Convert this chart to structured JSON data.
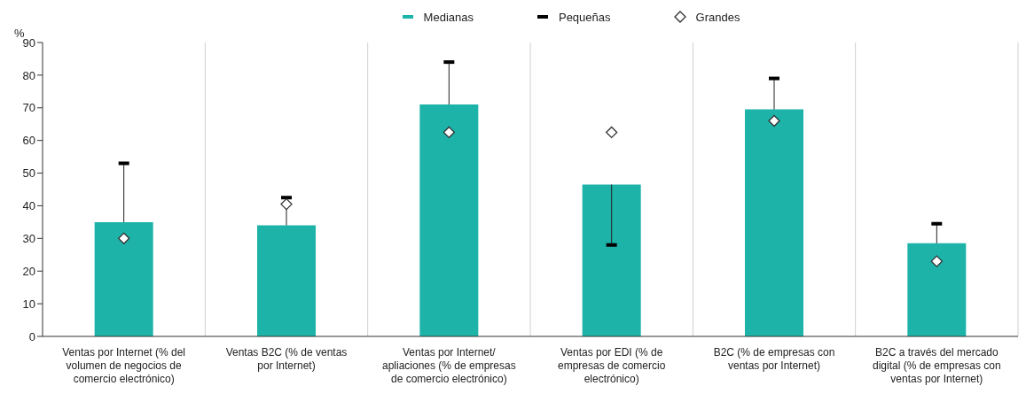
{
  "chart_data": {
    "type": "bar",
    "ylabel": "%",
    "categories": [
      "Ventas por Internet (% del volumen de negocios de comercio electrónico)",
      "Ventas B2C (% de ventas por Internet)",
      "Ventas por Internet/ apliaciones (% de empresas de comercio electrónico)",
      "Ventas por EDI (% de empresas de comercio electrónico)",
      "B2C (% de empresas con ventas por Internet)",
      "B2C a través del mercado digital (% de empresas con ventas por Internet)"
    ],
    "series": [
      {
        "name": "Medianas",
        "color": "#1db3a9",
        "values": [
          35,
          34,
          71,
          46.5,
          69.5,
          28.5
        ],
        "errors": [
          [
            35,
            53
          ],
          [
            34,
            42.5
          ],
          [
            71,
            84
          ],
          [
            28,
            46.5
          ],
          [
            69.5,
            79
          ],
          [
            28.5,
            34.5
          ]
        ]
      },
      {
        "name": "Pequeñas",
        "type": "scatter",
        "color": "#000000",
        "values": [
          53,
          42.5,
          84,
          28,
          79,
          34.5
        ]
      },
      {
        "name": "Grandes",
        "type": "scatter",
        "marker": "diamond",
        "color": "#333333",
        "values": [
          30,
          40.5,
          62.5,
          62.5,
          66,
          23
        ]
      }
    ],
    "ylim": [
      0,
      90
    ],
    "yticks": [
      0,
      10,
      20,
      30,
      40,
      50,
      60,
      70,
      80,
      90
    ],
    "grid": "x",
    "legend": "top"
  }
}
